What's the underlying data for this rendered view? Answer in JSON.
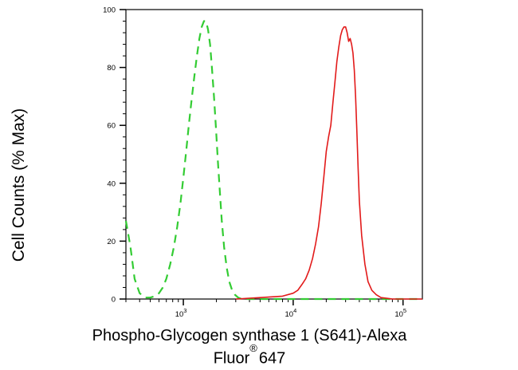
{
  "chart_data": {
    "type": "line",
    "xlabel": "Phospho-Glycogen synthase 1 (S641)-Alexa",
    "xlabel_line2_prefix": "Fluor",
    "xlabel_line2_mark": "®",
    "xlabel_line2_suffix": "647",
    "ylabel": "Cell Counts (% Max)",
    "x_scale": "log",
    "xlim": [
      300,
      150000
    ],
    "ylim": [
      0,
      100
    ],
    "x_ticks": [
      {
        "value": 1000,
        "base": "10",
        "exp": "3"
      },
      {
        "value": 10000,
        "base": "10",
        "exp": "4"
      },
      {
        "value": 100000,
        "base": "10",
        "exp": "5"
      }
    ],
    "y_ticks": [
      0,
      20,
      40,
      60,
      80,
      100
    ],
    "series": [
      {
        "style": "dashed",
        "color": "#33cc33",
        "x": [
          300,
          330,
          360,
          400,
          450,
          500,
          550,
          600,
          650,
          700,
          760,
          820,
          880,
          940,
          1000,
          1060,
          1120,
          1190,
          1260,
          1330,
          1400,
          1470,
          1540,
          1610,
          1680,
          1750,
          1820,
          1900,
          1980,
          2060,
          2150,
          2240,
          2350,
          2480,
          2620,
          2780,
          2950,
          3150,
          3400,
          3700,
          4000,
          5000,
          8000,
          12000,
          20000,
          40000,
          80000,
          150000
        ],
        "y": [
          27,
          18,
          7,
          2,
          0.5,
          0.5,
          1,
          2,
          4,
          7,
          12,
          18,
          25,
          33,
          42,
          51,
          60,
          69,
          77,
          84,
          90,
          94,
          96,
          96,
          93,
          88,
          80,
          70,
          59,
          48,
          37,
          27,
          18,
          11,
          6,
          3,
          1.5,
          0.5,
          0,
          0,
          0,
          0,
          0,
          0,
          0,
          0,
          0,
          0
        ]
      },
      {
        "style": "solid",
        "color": "#e21a1a",
        "x": [
          3000,
          5000,
          8000,
          10000,
          11000,
          12000,
          13000,
          14000,
          15000,
          16000,
          17000,
          18000,
          19000,
          20000,
          21000,
          22000,
          23000,
          24000,
          25000,
          26000,
          27000,
          28000,
          29000,
          30000,
          31000,
          32000,
          33000,
          34000,
          35000,
          36000,
          37000,
          38000,
          39000,
          40000,
          42000,
          45000,
          48000,
          52000,
          57000,
          63000,
          70000,
          80000,
          100000,
          150000
        ],
        "y": [
          0,
          0.5,
          1,
          2,
          3,
          5,
          7,
          10,
          14,
          19,
          25,
          33,
          42,
          51,
          56,
          60,
          68,
          75,
          82,
          87,
          91,
          93,
          94,
          94,
          92,
          89,
          90,
          88,
          85,
          79,
          70,
          58,
          45,
          34,
          22,
          12,
          6,
          3,
          1.5,
          0.5,
          0.3,
          0,
          0,
          0
        ]
      }
    ]
  }
}
